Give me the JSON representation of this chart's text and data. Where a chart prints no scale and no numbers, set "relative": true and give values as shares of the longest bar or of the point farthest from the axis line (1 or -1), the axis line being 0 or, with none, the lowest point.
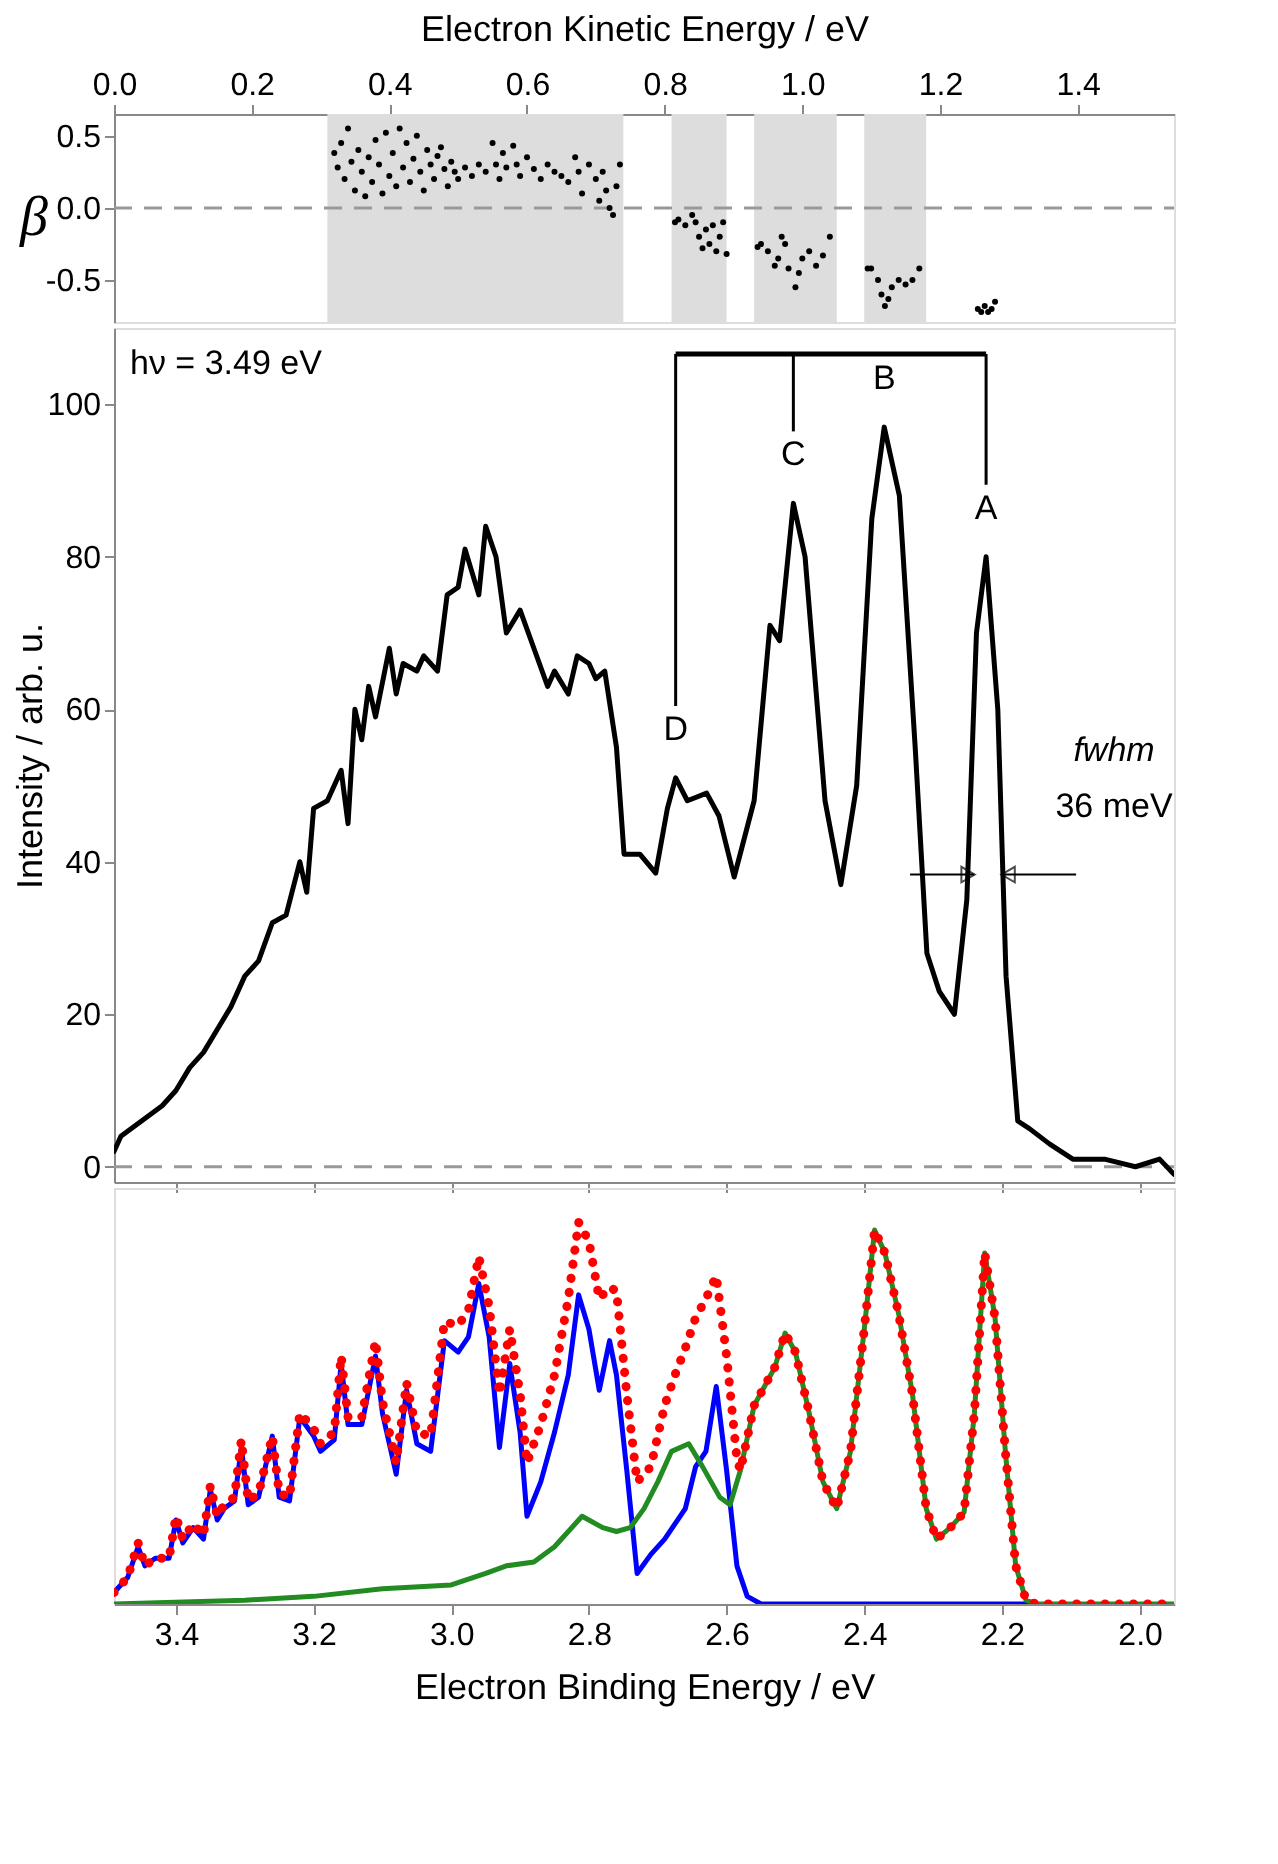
{
  "chart_data": [
    {
      "type": "scatter",
      "xlabel": "Electron Kinetic Energy / eV",
      "ylabel": "β",
      "xlim": [
        0,
        1.54
      ],
      "xticks": [
        {
          "value": 0,
          "label": "0.0"
        },
        0.2,
        0.4,
        0.6,
        0.8,
        {
          "value": 1,
          "label": "1.0"
        },
        1.2,
        1.4
      ],
      "ylim": [
        -0.79,
        0.65
      ],
      "yticks": [
        {
          "value": -0.5,
          "label": "-0.5"
        },
        {
          "value": 0,
          "label": "0.0"
        },
        0.5
      ],
      "grid": false,
      "marker": "circle",
      "ref_lines": [
        {
          "axis": "y",
          "value": 0,
          "color": "#999999",
          "line_style": "dashed"
        }
      ],
      "bands": [
        {
          "axis": "x",
          "from": 0.31,
          "to": 0.74,
          "color": "#dddddd"
        },
        {
          "axis": "x",
          "from": 0.81,
          "to": 0.89,
          "color": "#dddddd"
        },
        {
          "axis": "x",
          "from": 0.93,
          "to": 1.05,
          "color": "#dddddd"
        },
        {
          "axis": "x",
          "from": 1.09,
          "to": 1.18,
          "color": "#dddddd"
        }
      ],
      "series": [
        {
          "color": "#000000",
          "x": [
            0.32,
            0.325,
            0.33,
            0.335,
            0.34,
            0.345,
            0.35,
            0.355,
            0.36,
            0.365,
            0.37,
            0.375,
            0.38,
            0.385,
            0.39,
            0.395,
            0.4,
            0.405,
            0.41,
            0.415,
            0.42,
            0.425,
            0.43,
            0.435,
            0.44,
            0.445,
            0.45,
            0.455,
            0.46,
            0.465,
            0.47,
            0.475,
            0.48,
            0.485,
            0.49,
            0.495,
            0.5,
            0.51,
            0.52,
            0.53,
            0.54,
            0.55,
            0.555,
            0.56,
            0.565,
            0.57,
            0.58,
            0.585,
            0.59,
            0.6,
            0.61,
            0.62,
            0.63,
            0.64,
            0.65,
            0.66,
            0.67,
            0.675,
            0.68,
            0.69,
            0.7,
            0.705,
            0.71,
            0.715,
            0.72,
            0.725,
            0.73,
            0.735,
            0.815,
            0.82,
            0.83,
            0.84,
            0.845,
            0.85,
            0.855,
            0.86,
            0.865,
            0.87,
            0.875,
            0.88,
            0.885,
            0.89,
            0.935,
            0.94,
            0.95,
            0.96,
            0.965,
            0.97,
            0.975,
            0.98,
            0.99,
            0.995,
            1.0,
            1.01,
            1.02,
            1.03,
            1.04,
            1.095,
            1.1,
            1.11,
            1.115,
            1.12,
            1.125,
            1.13,
            1.14,
            1.15,
            1.16,
            1.17,
            1.255,
            1.26,
            1.265,
            1.27,
            1.275,
            1.28
          ],
          "values": [
            0.38,
            0.28,
            0.45,
            0.2,
            0.55,
            0.32,
            0.12,
            0.4,
            0.25,
            0.08,
            0.35,
            0.18,
            0.47,
            0.3,
            0.1,
            0.52,
            0.22,
            0.38,
            0.15,
            0.55,
            0.28,
            0.45,
            0.18,
            0.34,
            0.5,
            0.25,
            0.12,
            0.4,
            0.3,
            0.2,
            0.36,
            0.42,
            0.27,
            0.15,
            0.32,
            0.25,
            0.2,
            0.28,
            0.22,
            0.3,
            0.25,
            0.45,
            0.3,
            0.2,
            0.38,
            0.28,
            0.43,
            0.3,
            0.22,
            0.35,
            0.27,
            0.2,
            0.3,
            0.25,
            0.22,
            0.18,
            0.35,
            0.25,
            0.1,
            0.3,
            0.2,
            0.05,
            0.25,
            0.12,
            0.0,
            -0.05,
            0.15,
            0.3,
            -0.1,
            -0.08,
            -0.12,
            -0.05,
            -0.1,
            -0.2,
            -0.28,
            -0.15,
            -0.25,
            -0.12,
            -0.3,
            -0.2,
            -0.1,
            -0.32,
            -0.27,
            -0.25,
            -0.3,
            -0.4,
            -0.35,
            -0.2,
            -0.25,
            -0.42,
            -0.55,
            -0.45,
            -0.35,
            -0.3,
            -0.4,
            -0.33,
            -0.2,
            -0.42,
            -0.42,
            -0.5,
            -0.6,
            -0.68,
            -0.63,
            -0.55,
            -0.5,
            -0.53,
            -0.5,
            -0.42,
            -0.7,
            -0.72,
            -0.68,
            -0.72,
            -0.7,
            -0.65
          ]
        }
      ]
    },
    {
      "type": "line",
      "ylabel": "Intensity / arb. u.",
      "xlim": [
        3.49,
        1.95
      ],
      "xticks": [
        3.4,
        3.2,
        3,
        2.8,
        2.6,
        2.4,
        2.2,
        2
      ],
      "ylim": [
        -2,
        110
      ],
      "yticks": [
        0,
        20,
        40,
        60,
        80,
        100
      ],
      "tick_labels": "y",
      "grid": false,
      "marker": "none",
      "line_style": "solid",
      "ref_lines": [
        {
          "axis": "y",
          "value": 0,
          "color": "#999999",
          "line_style": "dashed"
        }
      ],
      "annotations": [
        "hν = 3.49 eV",
        "fwhm",
        "36 meV",
        {
          "text": "A",
          "x": 2.223,
          "y": 80
        },
        {
          "text": "B",
          "x": 2.371,
          "y": 97
        },
        {
          "text": "C",
          "x": 2.503,
          "y": 87
        },
        {
          "text": "D",
          "x": 2.674,
          "y": 51
        }
      ],
      "series": [
        {
          "color": "#000000",
          "x": [
            3.49,
            3.48,
            3.45,
            3.42,
            3.4,
            3.38,
            3.36,
            3.34,
            3.32,
            3.3,
            3.28,
            3.26,
            3.24,
            3.22,
            3.21,
            3.2,
            3.18,
            3.16,
            3.15,
            3.14,
            3.13,
            3.12,
            3.11,
            3.09,
            3.08,
            3.07,
            3.05,
            3.04,
            3.02,
            3.006,
            2.99,
            2.98,
            2.96,
            2.95,
            2.935,
            2.92,
            2.9,
            2.88,
            2.86,
            2.85,
            2.83,
            2.817,
            2.8,
            2.79,
            2.777,
            2.76,
            2.749,
            2.726,
            2.703,
            2.686,
            2.674,
            2.657,
            2.629,
            2.611,
            2.589,
            2.56,
            2.537,
            2.523,
            2.503,
            2.486,
            2.457,
            2.434,
            2.411,
            2.389,
            2.371,
            2.349,
            2.326,
            2.309,
            2.291,
            2.269,
            2.251,
            2.237,
            2.223,
            2.206,
            2.194,
            2.177,
            2.16,
            2.131,
            2.097,
            2.051,
            2.006,
            1.971,
            1.95
          ],
          "values": [
            2,
            4,
            6,
            8,
            10,
            13,
            15,
            18,
            21,
            25,
            27,
            32,
            33,
            40,
            36,
            47,
            48,
            52,
            45,
            60,
            56,
            63,
            59,
            68,
            62,
            66,
            65,
            67,
            65,
            75,
            76,
            81,
            75,
            84,
            80,
            70,
            73,
            68,
            63,
            65,
            62,
            67,
            66,
            64,
            65,
            55,
            41,
            41,
            38.5,
            47,
            51,
            48,
            49,
            46,
            38,
            48,
            71,
            69,
            87,
            80,
            48,
            37,
            50,
            85,
            97,
            88,
            55,
            28,
            23,
            20,
            35,
            70,
            80,
            60,
            25,
            6,
            5,
            3,
            1,
            1,
            0,
            1,
            -1
          ]
        }
      ]
    },
    {
      "type": "line",
      "xlabel": "Electron Binding Energy / eV",
      "xlim": [
        3.49,
        1.95
      ],
      "xticks": [
        3.4,
        3.2,
        {
          "value": 3,
          "label": "3.0"
        },
        2.8,
        2.6,
        2.4,
        2.2,
        {
          "value": 2,
          "label": "2.0"
        }
      ],
      "relative": true,
      "tick_labels": "x",
      "grid": false,
      "marker": "none",
      "series": [
        {
          "color": "#0000ff",
          "line_style": "solid",
          "x": [
            3.49,
            3.47,
            3.455,
            3.445,
            3.43,
            3.41,
            3.4,
            3.39,
            3.375,
            3.36,
            3.35,
            3.34,
            3.33,
            3.315,
            3.305,
            3.295,
            3.28,
            3.26,
            3.25,
            3.235,
            3.22,
            3.2,
            3.19,
            3.17,
            3.16,
            3.15,
            3.13,
            3.11,
            3.1,
            3.08,
            3.065,
            3.05,
            3.03,
            3.01,
            2.99,
            2.975,
            2.96,
            2.945,
            2.93,
            2.915,
            2.9,
            2.89,
            2.87,
            2.85,
            2.83,
            2.815,
            2.8,
            2.785,
            2.77,
            2.76,
            2.745,
            2.73,
            2.71,
            2.69,
            2.675,
            2.66,
            2.645,
            2.63,
            2.615,
            2.6,
            2.585,
            2.57,
            2.55,
            2.16
          ],
          "values": [
            0.03,
            0.07,
            0.15,
            0.1,
            0.12,
            0.12,
            0.22,
            0.16,
            0.2,
            0.17,
            0.3,
            0.22,
            0.25,
            0.27,
            0.41,
            0.26,
            0.28,
            0.44,
            0.28,
            0.27,
            0.49,
            0.44,
            0.4,
            0.43,
            0.63,
            0.47,
            0.47,
            0.65,
            0.5,
            0.34,
            0.56,
            0.42,
            0.4,
            0.69,
            0.66,
            0.7,
            0.84,
            0.7,
            0.41,
            0.63,
            0.45,
            0.23,
            0.32,
            0.45,
            0.6,
            0.81,
            0.72,
            0.56,
            0.69,
            0.6,
            0.35,
            0.08,
            0.13,
            0.17,
            0.21,
            0.25,
            0.36,
            0.4,
            0.57,
            0.35,
            0.1,
            0.02,
            0,
            0
          ]
        },
        {
          "color": "#228b22",
          "line_style": "solid",
          "x": [
            3.49,
            3.3,
            3.2,
            3.1,
            3.0,
            2.95,
            2.92,
            2.88,
            2.85,
            2.81,
            2.78,
            2.76,
            2.74,
            2.72,
            2.7,
            2.68,
            2.655,
            2.635,
            2.61,
            2.595,
            2.58,
            2.56,
            2.545,
            2.53,
            2.515,
            2.5,
            2.48,
            2.46,
            2.44,
            2.42,
            2.4,
            2.385,
            2.37,
            2.35,
            2.33,
            2.31,
            2.295,
            2.275,
            2.255,
            2.24,
            2.225,
            2.21,
            2.195,
            2.18,
            2.165,
            2.15,
            1.95
          ],
          "values": [
            0,
            0.01,
            0.02,
            0.04,
            0.05,
            0.08,
            0.1,
            0.11,
            0.15,
            0.23,
            0.2,
            0.19,
            0.2,
            0.25,
            0.32,
            0.4,
            0.42,
            0.36,
            0.28,
            0.26,
            0.35,
            0.52,
            0.57,
            0.62,
            0.71,
            0.66,
            0.5,
            0.32,
            0.25,
            0.4,
            0.72,
            0.98,
            0.92,
            0.76,
            0.55,
            0.25,
            0.17,
            0.2,
            0.24,
            0.5,
            0.92,
            0.75,
            0.4,
            0.1,
            0.01,
            0,
            0
          ]
        },
        {
          "color": "#ff0000",
          "line_style": "dotted",
          "x": [
            3.49,
            3.47,
            3.455,
            3.445,
            3.43,
            3.41,
            3.4,
            3.39,
            3.375,
            3.36,
            3.35,
            3.34,
            3.33,
            3.315,
            3.305,
            3.295,
            3.28,
            3.26,
            3.25,
            3.235,
            3.22,
            3.2,
            3.19,
            3.17,
            3.16,
            3.15,
            3.13,
            3.11,
            3.1,
            3.08,
            3.065,
            3.05,
            3.03,
            3.01,
            2.99,
            2.975,
            2.96,
            2.945,
            2.93,
            2.915,
            2.9,
            2.89,
            2.87,
            2.85,
            2.83,
            2.815,
            2.8,
            2.785,
            2.77,
            2.76,
            2.745,
            2.73,
            2.71,
            2.69,
            2.675,
            2.66,
            2.645,
            2.63,
            2.615,
            2.6,
            2.585,
            2.58,
            2.56,
            2.545,
            2.53,
            2.515,
            2.5,
            2.48,
            2.46,
            2.44,
            2.42,
            2.4,
            2.385,
            2.37,
            2.35,
            2.33,
            2.31,
            2.295,
            2.275,
            2.255,
            2.24,
            2.225,
            2.21,
            2.195,
            2.18,
            2.165,
            2.15,
            1.95
          ],
          "values": [
            0.03,
            0.07,
            0.16,
            0.1,
            0.12,
            0.12,
            0.23,
            0.17,
            0.21,
            0.18,
            0.31,
            0.23,
            0.26,
            0.28,
            0.43,
            0.27,
            0.29,
            0.44,
            0.29,
            0.28,
            0.5,
            0.46,
            0.42,
            0.45,
            0.65,
            0.49,
            0.49,
            0.69,
            0.53,
            0.37,
            0.58,
            0.45,
            0.44,
            0.74,
            0.73,
            0.77,
            0.91,
            0.78,
            0.55,
            0.72,
            0.55,
            0.37,
            0.47,
            0.6,
            0.8,
            1.0,
            0.95,
            0.8,
            0.83,
            0.82,
            0.55,
            0.32,
            0.36,
            0.52,
            0.6,
            0.67,
            0.75,
            0.8,
            0.86,
            0.65,
            0.38,
            0.35,
            0.52,
            0.57,
            0.62,
            0.71,
            0.66,
            0.5,
            0.32,
            0.25,
            0.4,
            0.72,
            0.98,
            0.92,
            0.76,
            0.55,
            0.25,
            0.17,
            0.2,
            0.24,
            0.5,
            0.92,
            0.75,
            0.4,
            0.1,
            0.01,
            0,
            0
          ]
        }
      ]
    }
  ]
}
